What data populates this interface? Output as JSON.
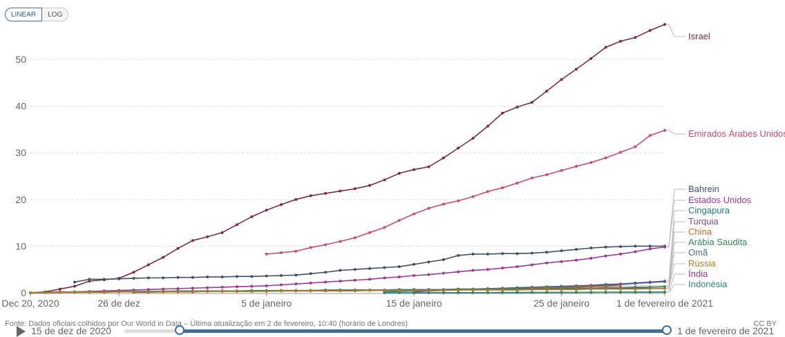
{
  "controls": {
    "linear_label": "LINEAR",
    "log_label": "LOG",
    "selected": "LINEAR"
  },
  "chart_data": {
    "type": "line",
    "y_ticks": [
      0,
      10,
      20,
      30,
      40,
      50
    ],
    "ylim": [
      0,
      58
    ],
    "x_ticks": [
      {
        "label": "Dec 20, 2020",
        "day": 0
      },
      {
        "label": "26 de dez",
        "day": 6
      },
      {
        "label": "5 de janeiro",
        "day": 16
      },
      {
        "label": "15 de janeiro",
        "day": 26
      },
      {
        "label": "25 de janeiro",
        "day": 36
      },
      {
        "label": "1 de fevereiro de 2021",
        "day": 43
      }
    ],
    "xlim": [
      0,
      43
    ],
    "grid": true,
    "legend": "right, labels at line ends",
    "series": [
      {
        "name": "Israel",
        "color": "#7a2e3b",
        "start_day": 0,
        "values": [
          0.01,
          0.2,
          0.8,
          1.4,
          2.5,
          2.8,
          3.1,
          4.4,
          6.0,
          7.6,
          9.5,
          11.2,
          12.0,
          12.9,
          14.6,
          16.3,
          17.7,
          18.9,
          20.0,
          20.8,
          21.3,
          21.8,
          22.3,
          23.0,
          24.2,
          25.6,
          26.4,
          27.0,
          28.9,
          31.0,
          33.1,
          35.7,
          38.5,
          39.8,
          40.8,
          43.2,
          45.7,
          47.9,
          50.2,
          52.6,
          53.9,
          54.7,
          56.2,
          57.5
        ]
      },
      {
        "name": "Emirados Árabes Unidos",
        "color": "#cf4a6a",
        "start_day": 16,
        "values": [
          8.3,
          8.6,
          8.9,
          9.7,
          10.3,
          11.0,
          11.8,
          12.9,
          14.0,
          15.5,
          16.9,
          18.1,
          19.0,
          19.7,
          20.6,
          21.7,
          22.5,
          23.5,
          24.6,
          25.3,
          26.2,
          27.1,
          27.9,
          28.9,
          30.1,
          31.3,
          33.7,
          34.8
        ]
      },
      {
        "name": "Bahrein",
        "color": "#3e4e6e",
        "start_day": 3,
        "values": [
          2.3,
          2.9,
          2.9,
          3.0,
          3.1,
          3.2,
          3.2,
          3.3,
          3.3,
          3.4,
          3.4,
          3.5,
          3.5,
          3.6,
          3.7,
          3.8,
          4.1,
          4.4,
          4.8,
          5.0,
          5.2,
          5.4,
          5.6,
          6.1,
          6.6,
          7.1,
          8.0,
          8.3,
          8.3,
          8.4,
          8.4,
          8.5,
          8.7,
          9.0,
          9.3,
          9.6,
          9.8,
          9.9,
          10.0,
          10.0,
          10.0
        ]
      },
      {
        "name": "Estados Unidos",
        "color": "#a2339b",
        "start_day": 0,
        "values": [
          0.0,
          0.1,
          0.2,
          0.2,
          0.3,
          0.4,
          0.5,
          0.6,
          0.7,
          0.8,
          0.9,
          1.0,
          1.1,
          1.2,
          1.3,
          1.4,
          1.5,
          1.7,
          1.9,
          2.1,
          2.3,
          2.5,
          2.7,
          2.9,
          3.2,
          3.4,
          3.7,
          3.9,
          4.2,
          4.5,
          4.8,
          5.0,
          5.3,
          5.6,
          6.0,
          6.4,
          6.7,
          7.0,
          7.4,
          7.9,
          8.3,
          8.8,
          9.4,
          9.8
        ]
      },
      {
        "name": "Cingapura",
        "color": "#1d7a8c",
        "start_day": 24,
        "values": [
          0.2,
          0.3,
          0.4,
          0.5,
          0.6,
          0.7,
          0.8,
          0.9,
          1.0,
          1.1,
          1.2,
          1.3,
          1.4,
          1.5,
          1.6,
          1.8,
          1.9,
          2.1,
          2.3,
          2.5
        ]
      },
      {
        "name": "Turquia",
        "color": "#6a4c93",
        "start_day": 26,
        "values": [
          0.2,
          0.4,
          0.5,
          0.6,
          0.7,
          0.8,
          0.9,
          1.0,
          1.1,
          1.2,
          1.3,
          1.4,
          1.5,
          1.6,
          1.8,
          2.0,
          2.2,
          2.4
        ]
      },
      {
        "name": "China",
        "color": "#c46a28",
        "start_day": 0,
        "values": [
          0.0,
          0.1,
          0.1,
          0.1,
          0.2,
          0.2,
          0.2,
          0.2,
          0.3,
          0.3,
          0.3,
          0.3,
          0.3,
          0.4,
          0.4,
          0.4,
          0.4,
          0.5,
          0.5,
          0.5,
          0.5,
          0.6,
          0.6,
          0.6,
          0.6,
          0.7,
          0.7,
          0.7,
          0.7,
          0.8,
          0.8,
          0.8,
          0.9,
          0.9,
          1.0,
          1.1,
          1.1,
          1.2,
          1.3,
          1.4,
          1.5
        ]
      },
      {
        "name": "Arábia Saudita",
        "color": "#2e8b57",
        "start_day": 0,
        "values": [
          0.0,
          0.1,
          0.1,
          0.2,
          0.2,
          0.2,
          0.3,
          0.3,
          0.3,
          0.3,
          0.4,
          0.4,
          0.4,
          0.4,
          0.4,
          0.5,
          0.5,
          0.5,
          0.5,
          0.5,
          0.6,
          0.6,
          0.6,
          0.6,
          0.6,
          0.7,
          0.7,
          0.7,
          0.7,
          0.8,
          0.8,
          0.8,
          0.8,
          0.9,
          0.9,
          0.9,
          1.0,
          1.0,
          1.0,
          1.1,
          1.1,
          1.2,
          1.2,
          1.3
        ]
      },
      {
        "name": "Omã",
        "color": "#4a6c8c",
        "start_day": 7,
        "values": [
          0.1,
          0.1,
          0.2,
          0.2,
          0.2,
          0.3,
          0.3,
          0.3,
          0.3,
          0.4,
          0.4,
          0.4,
          0.4,
          0.5,
          0.5,
          0.5,
          0.5,
          0.5,
          0.6,
          0.6,
          0.6,
          0.6,
          0.6,
          0.7,
          0.7,
          0.7,
          0.7,
          0.8,
          0.8,
          0.8,
          0.8,
          0.9,
          0.9,
          1.0,
          1.0,
          1.0
        ]
      },
      {
        "name": "Rússia",
        "color": "#b7791f",
        "start_day": 0,
        "values": [
          0.0,
          0.0,
          0.1,
          0.1,
          0.1,
          0.1,
          0.2,
          0.2,
          0.2,
          0.2,
          0.2,
          0.3,
          0.3,
          0.3,
          0.3,
          0.3,
          0.3,
          0.4,
          0.4,
          0.4,
          0.4,
          0.4,
          0.4,
          0.5,
          0.5,
          0.5,
          0.5,
          0.5,
          0.5,
          0.6,
          0.6,
          0.6,
          0.6,
          0.6,
          0.7,
          0.7,
          0.7,
          0.7,
          0.8,
          0.8,
          0.8,
          0.8,
          0.9,
          0.9
        ]
      },
      {
        "name": "Índia",
        "color": "#a3307f",
        "start_day": 26,
        "values": [
          0.0,
          0.0,
          0.01,
          0.01,
          0.02,
          0.03,
          0.04,
          0.05,
          0.06,
          0.07,
          0.08,
          0.09,
          0.1,
          0.11,
          0.12,
          0.13,
          0.14,
          0.15
        ]
      },
      {
        "name": "Indonésia",
        "color": "#2b8a6e",
        "start_day": 24,
        "values": [
          0.0,
          0.01,
          0.01,
          0.02,
          0.02,
          0.03,
          0.04,
          0.05,
          0.06,
          0.07,
          0.08,
          0.09,
          0.1,
          0.11,
          0.12,
          0.13,
          0.14,
          0.15,
          0.16,
          0.17
        ]
      }
    ]
  },
  "footer": {
    "source": "Fonte: Dados oficiais colhidos por Our World in Data – Última atualização em 2 de fevereiro, 10:40 (horário de Londres)",
    "license": "CC BY"
  },
  "timeline": {
    "start_label": "15 de dez de 2020",
    "end_label": "1 de fevereiro de 2021"
  }
}
